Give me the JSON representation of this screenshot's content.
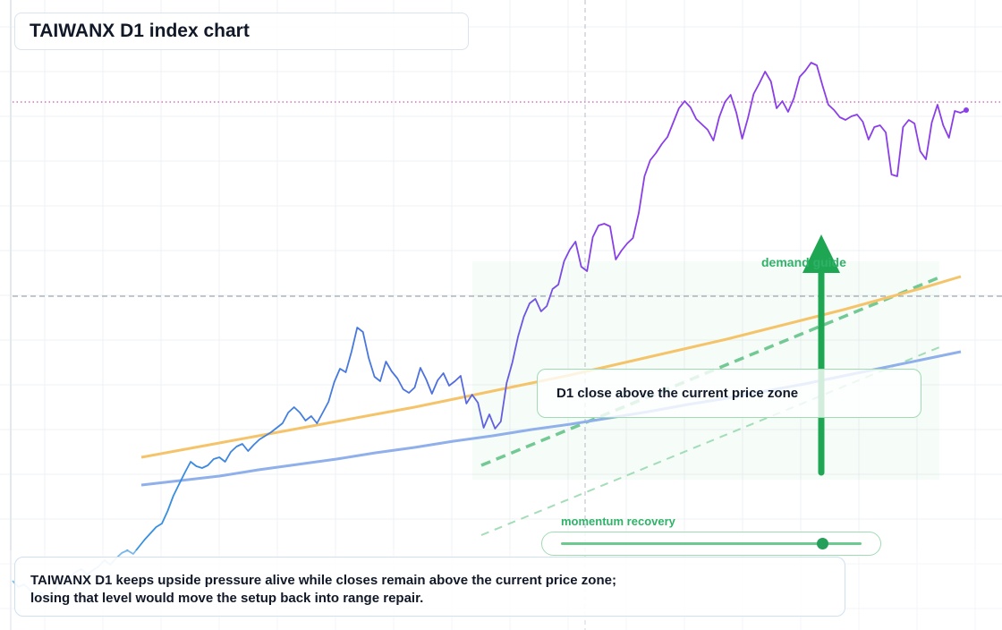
{
  "title": "TAIWANX D1 index chart",
  "callout": "D1 close above the current price zone",
  "demand_label": "demand guide",
  "momentum": {
    "label": "momentum recovery",
    "level": 0.87
  },
  "note": {
    "line1": "TAIWANX D1 keeps upside pressure alive while closes remain above the current price zone;",
    "line2": "losing that level would move the setup back into range repair."
  },
  "colors": {
    "price_early": "#2b9fe0",
    "price_mid": "#4f6fde",
    "price_late": "#8a3ee8",
    "slow_average": "#f5c46a",
    "fast_average": "#8fb0ea",
    "bullish_green": "#1ea653",
    "resistance_marker": "#c02aa0"
  },
  "chart_data": {
    "type": "line",
    "title": "TAIWANX D1 index chart",
    "xlabel": "",
    "ylabel": "",
    "grid": true,
    "y_axis": "not labeled",
    "series": [
      {
        "values": [
          48,
          41,
          44,
          38,
          31,
          35,
          28,
          33,
          46,
          43,
          52,
          58,
          61,
          55,
          60,
          64,
          71,
          66,
          73,
          79,
          82,
          78,
          86,
          94,
          101,
          108,
          112,
          126,
          143,
          156,
          169,
          181,
          176,
          174,
          177,
          184,
          186,
          181,
          192,
          198,
          201,
          193,
          200,
          206,
          210,
          214,
          219,
          224,
          236,
          242,
          236,
          227,
          232,
          224,
          236,
          248,
          270,
          285,
          281,
          304,
          331,
          326,
          297,
          276,
          271,
          293,
          282,
          274,
          262,
          258,
          264,
          286,
          273,
          257,
          272,
          280,
          266,
          271,
          277,
          246,
          256,
          247,
          219,
          234,
          218,
          226,
          269,
          292,
          321,
          343,
          358,
          363,
          349,
          355,
          374,
          379,
          405,
          418,
          427,
          399,
          394,
          432,
          445,
          447,
          444,
          407,
          417,
          425,
          431,
          459,
          500,
          518,
          526,
          536,
          544,
          560,
          576,
          584,
          577,
          564,
          558,
          552,
          540,
          566,
          583,
          591,
          571,
          542,
          565,
          592,
          604,
          617,
          606,
          576,
          584,
          572,
          587,
          611,
          618,
          627,
          624,
          601,
          580,
          574,
          566,
          563,
          567,
          569,
          561,
          541,
          555,
          557,
          549,
          502,
          500,
          555,
          563,
          559,
          528,
          519,
          560,
          580,
          557,
          543,
          573,
          571,
          574
        ]
      },
      {
        "values": [
          186,
          194,
          202,
          210,
          218,
          226,
          234,
          242,
          251,
          260,
          269,
          278,
          288,
          298,
          308,
          318,
          329,
          340,
          351,
          363,
          375,
          388
        ]
      },
      {
        "values": [
          155,
          160,
          165,
          172,
          178,
          184,
          191,
          197,
          204,
          210,
          217,
          223,
          230,
          237,
          245,
          252,
          260,
          268,
          277,
          286,
          295,
          304
        ]
      }
    ],
    "reference_levels": [
      {
        "value": 583,
        "style": "dotted"
      },
      {
        "value": 366,
        "style": "dashed"
      }
    ],
    "annotations": [
      {
        "type": "arrow",
        "direction": "up",
        "label": "demand guide"
      },
      {
        "type": "box",
        "label": "D1 close above the current price zone"
      },
      {
        "type": "slider",
        "label": "momentum recovery",
        "value": 0.87
      }
    ]
  }
}
